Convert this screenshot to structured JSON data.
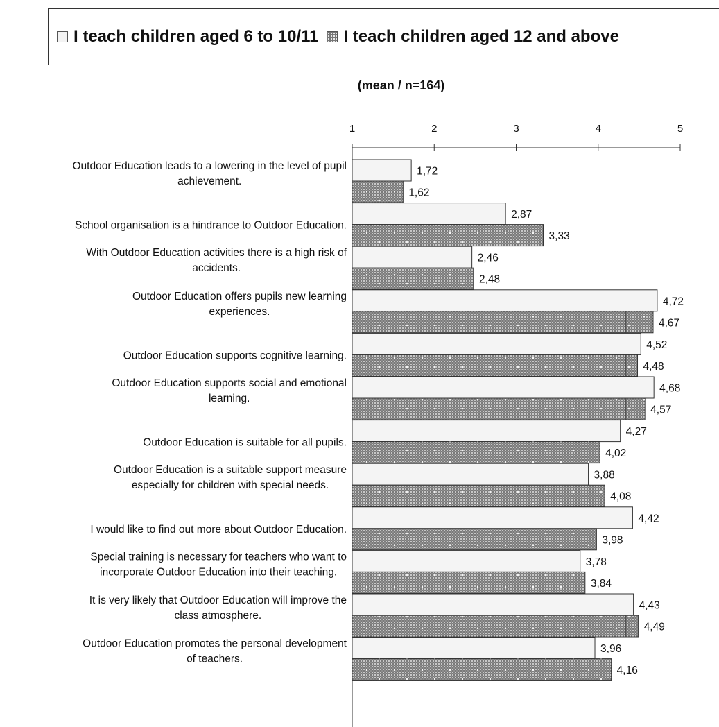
{
  "legend": {
    "series_1": "I teach children aged 6 to 10/11",
    "series_2": "I teach children aged 12 and above"
  },
  "subtitle": "(mean / n=164)",
  "colors": {
    "series_1_fill": "#f4f4f4",
    "series_2_fill": "#7a7a7a",
    "outline": "#333333"
  },
  "chart_data": {
    "type": "bar",
    "orientation": "horizontal",
    "title": "",
    "subtitle": "(mean / n=164)",
    "xlim": [
      1,
      5
    ],
    "x_ticks": [
      "1",
      "2",
      "3",
      "4",
      "5"
    ],
    "grid": false,
    "legend_position": "top",
    "categories": [
      [
        "Outdoor Education leads to a lowering in the level of pupil",
        "achievement."
      ],
      [
        "School organisation is a hindrance to Outdoor Education."
      ],
      [
        "With Outdoor Education activities there is a high risk of",
        "accidents."
      ],
      [
        "Outdoor Education offers pupils new learning",
        "experiences."
      ],
      [
        "Outdoor Education supports cognitive learning."
      ],
      [
        "Outdoor Education supports social and emotional",
        "learning."
      ],
      [
        "Outdoor Education is suitable for all pupils."
      ],
      [
        "Outdoor Education is a suitable support measure",
        "especially for children with special needs."
      ],
      [
        "I would like to find out more about Outdoor Education."
      ],
      [
        "Special training is necessary for teachers who want to",
        "incorporate Outdoor Education into their teaching."
      ],
      [
        "It is very likely that Outdoor Education will improve the",
        "class atmosphere."
      ],
      [
        "Outdoor Education promotes the personal development",
        "of teachers."
      ]
    ],
    "series": [
      {
        "name": "I teach children aged 6 to 10/11",
        "values": [
          1.72,
          2.87,
          2.46,
          4.72,
          4.52,
          4.68,
          4.27,
          3.88,
          4.42,
          3.78,
          4.43,
          3.96
        ],
        "labels": [
          "1,72",
          "2,87",
          "2,46",
          "4,72",
          "4,52",
          "4,68",
          "4,27",
          "3,88",
          "4,42",
          "3,78",
          "4,43",
          "3,96"
        ]
      },
      {
        "name": "I teach children aged 12 and above",
        "values": [
          1.62,
          3.33,
          2.48,
          4.67,
          4.48,
          4.57,
          4.02,
          4.08,
          3.98,
          3.84,
          4.49,
          4.16
        ],
        "labels": [
          "1,62",
          "3,33",
          "2,48",
          "4,67",
          "4,48",
          "4,57",
          "4,02",
          "4,08",
          "3,98",
          "3,84",
          "4,49",
          "4,16"
        ]
      }
    ]
  }
}
